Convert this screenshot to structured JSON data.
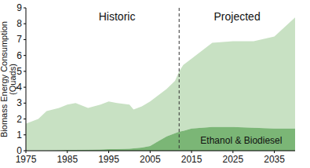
{
  "chart_data": {
    "type": "area",
    "stacked": true,
    "ylabel": "Biomass Energy Consumption (Quads)",
    "x": [
      1975,
      1978,
      1980,
      1983,
      1985,
      1987,
      1990,
      1993,
      1995,
      1997,
      2000,
      2001,
      2003,
      2005,
      2007,
      2009,
      2011,
      2012,
      2013,
      2015,
      2020,
      2025,
      2030,
      2035,
      2040
    ],
    "series": [
      {
        "name": "Ethanol & Biodiesel",
        "color": "#7bb676",
        "values": [
          0,
          0,
          0,
          0.02,
          0.05,
          0.05,
          0.06,
          0.08,
          0.1,
          0.1,
          0.12,
          0.15,
          0.2,
          0.3,
          0.6,
          0.9,
          1.1,
          1.2,
          1.25,
          1.4,
          1.5,
          1.5,
          1.45,
          1.4,
          1.4
        ]
      },
      {
        "color": "#c8e1c3",
        "values": [
          1.7,
          2.0,
          2.5,
          2.68,
          2.85,
          2.95,
          2.64,
          2.82,
          3.0,
          2.9,
          2.78,
          2.45,
          2.6,
          2.8,
          2.9,
          3.0,
          3.3,
          3.8,
          4.15,
          4.4,
          5.3,
          5.4,
          5.45,
          5.8,
          7.0
        ]
      }
    ],
    "xlim": [
      1975,
      2040
    ],
    "xticks": [
      1975,
      1985,
      1995,
      2005,
      2015,
      2025,
      2035
    ],
    "ylim": [
      0,
      9
    ],
    "yticks": [
      0,
      1,
      2,
      3,
      4,
      5,
      6,
      7,
      8,
      9
    ],
    "divider_x": 2012,
    "annotations": [
      {
        "text": "Historic",
        "x": 1997
      },
      {
        "text": "Projected",
        "x": 2026
      }
    ]
  }
}
